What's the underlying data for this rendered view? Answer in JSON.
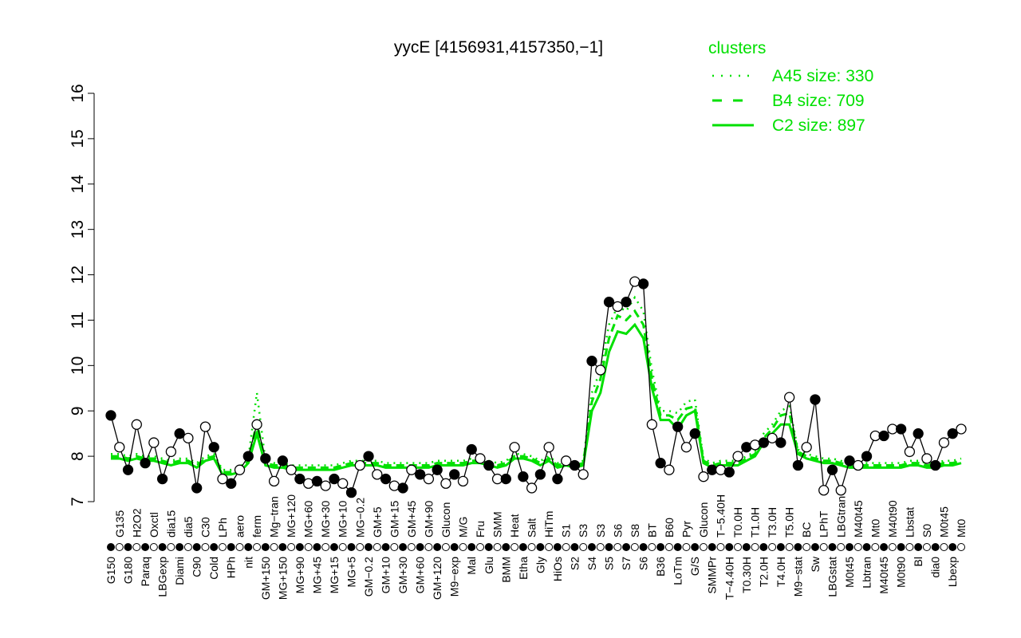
{
  "chart_data": {
    "type": "line",
    "title": "yycE [4156931,4157350,−1]",
    "xlabel": "",
    "ylabel": "",
    "ylim": [
      7,
      16
    ],
    "yticks": [
      7,
      8,
      9,
      10,
      11,
      12,
      13,
      14,
      15,
      16
    ],
    "grid": false,
    "legend": {
      "title": "clusters",
      "placement": "top-right",
      "entries": [
        {
          "label": "A45 size: 330",
          "style": "dotted"
        },
        {
          "label": "B4 size: 709",
          "style": "dashed"
        },
        {
          "label": "C2 size: 897",
          "style": "solid"
        }
      ]
    },
    "colors": {
      "series": "#000000",
      "clusters": "#00e000"
    },
    "categories": [
      "G150",
      "G135",
      "G180",
      "H2O2",
      "Paraq",
      "Oxctl",
      "LBGexp",
      "dia15",
      "Diami",
      "dia5",
      "C90",
      "C30",
      "Cold",
      "LPh",
      "HPh",
      "aero",
      "nit",
      "ferm",
      "GM+150",
      "Mg−tran",
      "MG+150",
      "MG+120",
      "MG+90",
      "MG+60",
      "MG+45",
      "MG+30",
      "MG+15",
      "MG+10",
      "MG+5",
      "MG−0.2",
      "GM−0.2",
      "GM+5",
      "GM+10",
      "GM+15",
      "GM+30",
      "GM+45",
      "GM+60",
      "GM+90",
      "GM+120",
      "Glucon",
      "M9−exp",
      "M/G",
      "Mal",
      "Fru",
      "Glu",
      "SMM",
      "BMM",
      "Heat",
      "Etha",
      "Salt",
      "Gly",
      "HiTm",
      "HiOs",
      "S1",
      "S2",
      "S3",
      "S4",
      "S3",
      "S5",
      "S6",
      "S7",
      "S8",
      "S6",
      "BT",
      "B36",
      "B60",
      "LoTm",
      "Pyr",
      "G/S",
      "Glucon",
      "SMMPr",
      "T−5.40H",
      "T−4.40H",
      "T0.0H",
      "T0.30H",
      "T1.0H",
      "T2.0H",
      "T3.0H",
      "T4.0H",
      "T5.0H",
      "M9−stat",
      "BC",
      "Sw",
      "LPhT",
      "LBGstat",
      "LBGtran",
      "M0t45",
      "M40t45",
      "Lbtran",
      "Mt0",
      "M40t45",
      "M40t90",
      "M0t90",
      "Lbstat",
      "Bl",
      "S0",
      "dia0",
      "M0t45",
      "Lbexp",
      "Mt0"
    ],
    "series": [
      {
        "values": [
          8.9,
          8.2,
          7.7,
          8.7,
          7.85,
          8.3,
          7.5,
          8.1,
          8.5,
          8.4,
          7.3,
          8.65,
          8.2,
          7.5,
          7.4,
          7.7,
          8.0,
          8.7,
          7.95,
          7.45,
          7.9,
          7.7,
          7.5,
          7.4,
          7.45,
          7.35,
          7.5,
          7.4,
          7.2,
          7.8,
          8.0,
          7.6,
          7.5,
          7.35,
          7.3,
          7.7,
          7.6,
          7.5,
          7.7,
          7.4,
          7.6,
          7.45,
          8.15,
          7.95,
          7.8,
          7.5,
          7.5,
          8.2,
          7.55,
          7.3,
          7.6,
          8.2,
          7.5,
          7.9,
          7.8,
          7.6,
          10.1,
          9.9,
          11.4,
          11.3,
          11.4,
          11.85,
          11.8,
          8.7,
          7.85,
          7.7,
          8.65,
          8.2,
          8.5,
          7.55,
          7.7,
          7.7,
          7.65,
          8.0,
          8.2,
          8.25,
          8.3,
          8.4,
          8.3,
          9.3,
          7.8,
          8.2,
          9.25,
          7.25,
          7.7,
          7.25,
          7.9,
          7.8,
          8.0,
          8.45,
          8.45,
          8.6,
          8.6,
          8.1,
          8.5,
          7.95,
          7.8,
          8.3,
          8.5,
          8.6
        ]
      },
      {
        "name": "C2",
        "values": [
          7.95,
          7.95,
          7.9,
          7.95,
          7.9,
          7.9,
          7.85,
          7.8,
          7.85,
          7.85,
          7.75,
          7.9,
          7.95,
          7.6,
          7.6,
          7.65,
          7.85,
          8.5,
          7.8,
          7.75,
          7.75,
          7.7,
          7.7,
          7.7,
          7.7,
          7.7,
          7.7,
          7.75,
          7.8,
          7.8,
          7.8,
          7.8,
          7.75,
          7.75,
          7.75,
          7.75,
          7.75,
          7.75,
          7.8,
          7.8,
          7.8,
          7.8,
          7.85,
          7.85,
          7.8,
          7.75,
          7.8,
          7.95,
          7.95,
          7.9,
          7.8,
          7.9,
          7.75,
          7.8,
          7.75,
          7.8,
          9.0,
          9.4,
          10.3,
          10.75,
          10.7,
          10.9,
          10.6,
          9.5,
          8.8,
          8.8,
          8.6,
          8.9,
          9.0,
          7.85,
          7.75,
          7.8,
          7.8,
          7.8,
          7.9,
          8.0,
          8.3,
          8.5,
          8.7,
          8.7,
          8.05,
          7.95,
          7.9,
          7.85,
          7.85,
          7.8,
          7.75,
          7.75,
          7.75,
          7.75,
          7.75,
          7.75,
          7.75,
          7.8,
          7.8,
          7.75,
          7.75,
          7.8,
          7.8,
          7.85
        ]
      },
      {
        "name": "B4",
        "values": [
          8.0,
          8.0,
          7.95,
          8.0,
          7.95,
          7.95,
          7.9,
          7.85,
          7.9,
          7.9,
          7.8,
          7.95,
          8.0,
          7.65,
          7.65,
          7.7,
          7.9,
          8.75,
          7.85,
          7.8,
          7.8,
          7.75,
          7.75,
          7.75,
          7.75,
          7.75,
          7.75,
          7.8,
          7.85,
          7.85,
          7.85,
          7.85,
          7.8,
          7.8,
          7.8,
          7.8,
          7.8,
          7.8,
          7.85,
          7.85,
          7.85,
          7.85,
          7.9,
          7.9,
          7.85,
          7.8,
          7.85,
          8.0,
          8.0,
          7.95,
          7.85,
          7.95,
          7.8,
          7.85,
          7.8,
          7.85,
          9.2,
          9.7,
          10.6,
          11.1,
          11.0,
          11.2,
          10.9,
          9.7,
          8.9,
          8.9,
          8.8,
          9.05,
          9.1,
          7.9,
          7.8,
          7.85,
          7.85,
          7.85,
          7.95,
          8.05,
          8.4,
          8.6,
          8.9,
          8.95,
          8.1,
          8.0,
          7.95,
          7.9,
          7.9,
          7.85,
          7.8,
          7.8,
          7.8,
          7.8,
          7.8,
          7.8,
          7.8,
          7.85,
          7.85,
          7.8,
          7.8,
          7.85,
          7.85,
          7.9
        ]
      },
      {
        "name": "A45",
        "values": [
          8.05,
          8.05,
          8.0,
          8.05,
          8.0,
          8.0,
          7.95,
          7.9,
          7.95,
          7.95,
          7.85,
          8.0,
          8.05,
          7.7,
          7.7,
          7.75,
          7.95,
          9.4,
          7.9,
          7.85,
          7.85,
          7.8,
          7.8,
          7.8,
          7.8,
          7.8,
          7.8,
          7.85,
          7.9,
          7.9,
          7.9,
          7.9,
          7.85,
          7.85,
          7.85,
          7.85,
          7.85,
          7.85,
          7.9,
          7.9,
          7.9,
          7.9,
          7.95,
          7.95,
          7.9,
          7.85,
          7.9,
          8.05,
          8.05,
          8.0,
          7.9,
          8.0,
          7.85,
          7.9,
          7.85,
          7.9,
          9.4,
          9.9,
          10.9,
          11.3,
          11.2,
          11.5,
          11.2,
          9.9,
          9.0,
          9.0,
          8.95,
          9.2,
          9.25,
          7.95,
          7.85,
          7.9,
          7.9,
          7.9,
          8.0,
          8.1,
          8.5,
          8.7,
          9.0,
          9.1,
          8.15,
          8.05,
          8.0,
          7.95,
          7.95,
          7.9,
          7.85,
          7.85,
          7.85,
          7.85,
          7.85,
          7.85,
          7.85,
          7.9,
          7.9,
          7.85,
          7.85,
          7.9,
          7.9,
          7.95
        ]
      }
    ]
  }
}
